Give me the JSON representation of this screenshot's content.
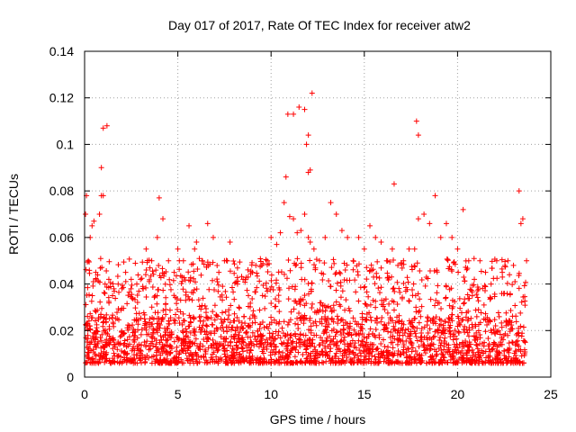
{
  "chart_data": {
    "type": "scatter",
    "title": "Day 017 of 2017, Rate Of TEC Index for receiver atw2",
    "xlabel": "GPS time / hours",
    "ylabel": "ROTI / TECUs",
    "xlim": [
      0,
      25
    ],
    "ylim": [
      0,
      0.14
    ],
    "x_ticks": [
      "0",
      "5",
      "10",
      "15",
      "20",
      "25"
    ],
    "y_ticks": [
      "0",
      "0.02",
      "0.04",
      "0.06",
      "0.08",
      "0.1",
      "0.12",
      "0.14"
    ],
    "grid": true,
    "legend": "none",
    "marker": "plus",
    "color": "#ff0000",
    "series": [
      {
        "x": [
          0.05,
          0.1,
          0.2,
          0.3,
          0.4,
          0.6,
          0.8,
          0.9,
          1.0,
          1.1,
          1.3,
          1.5,
          1.8,
          2.0,
          2.2,
          2.5,
          2.8,
          3.0,
          3.3,
          3.6,
          3.9,
          4.0,
          4.2,
          4.5,
          4.8,
          5.0,
          5.3,
          5.6,
          5.9,
          6.0,
          6.3,
          6.6,
          6.9,
          7.2,
          7.5,
          7.8,
          8.2,
          8.5,
          9.0,
          9.5,
          9.8,
          10.0,
          10.3,
          10.5,
          10.7,
          10.8,
          11.0,
          11.2,
          11.4,
          11.6,
          11.8,
          12.0,
          12.1,
          12.3,
          12.6,
          12.9,
          13.2,
          13.5,
          13.8,
          14.1,
          14.4,
          14.7,
          15.0,
          15.3,
          15.6,
          15.9,
          16.2,
          16.5,
          16.8,
          17.1,
          17.4,
          17.7,
          17.9,
          18.2,
          18.5,
          18.8,
          19.1,
          19.4,
          19.7,
          20.0,
          20.3,
          20.6,
          20.9,
          21.2,
          21.5,
          21.8,
          22.1,
          22.4,
          22.7,
          23.0,
          23.3,
          23.5,
          23.7,
          0.5,
          1.0,
          1.2,
          10.9,
          11.2,
          11.5,
          11.9,
          12.0,
          12.2,
          17.8,
          17.9,
          16.6,
          23.4,
          0.9,
          11.8,
          12.0,
          12.1
        ],
        "y": [
          0.07,
          0.078,
          0.05,
          0.06,
          0.065,
          0.045,
          0.07,
          0.078,
          0.078,
          0.04,
          0.042,
          0.035,
          0.04,
          0.038,
          0.045,
          0.042,
          0.04,
          0.042,
          0.055,
          0.05,
          0.06,
          0.077,
          0.068,
          0.05,
          0.045,
          0.055,
          0.05,
          0.065,
          0.055,
          0.058,
          0.05,
          0.066,
          0.06,
          0.045,
          0.05,
          0.058,
          0.04,
          0.042,
          0.045,
          0.048,
          0.05,
          0.06,
          0.057,
          0.062,
          0.075,
          0.086,
          0.069,
          0.068,
          0.062,
          0.063,
          0.07,
          0.06,
          0.058,
          0.055,
          0.05,
          0.06,
          0.075,
          0.07,
          0.063,
          0.06,
          0.05,
          0.06,
          0.055,
          0.065,
          0.06,
          0.058,
          0.05,
          0.055,
          0.048,
          0.05,
          0.055,
          0.055,
          0.068,
          0.07,
          0.066,
          0.078,
          0.06,
          0.066,
          0.06,
          0.055,
          0.072,
          0.05,
          0.042,
          0.05,
          0.045,
          0.04,
          0.05,
          0.045,
          0.05,
          0.048,
          0.08,
          0.068,
          0.05,
          0.067,
          0.107,
          0.108,
          0.113,
          0.113,
          0.116,
          0.1,
          0.104,
          0.122,
          0.11,
          0.104,
          0.083,
          0.066,
          0.09,
          0.115,
          0.088,
          0.089
        ]
      }
    ]
  }
}
